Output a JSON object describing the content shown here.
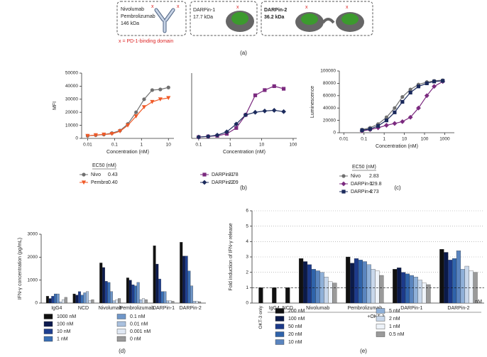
{
  "diagram": {
    "antibodies": {
      "names": [
        "Nivolumab",
        "Pembrolizumab"
      ],
      "size": "146 kDa"
    },
    "darpin1": {
      "name": "DARPin-1",
      "size": "17.7 kDa"
    },
    "darpin2": {
      "name": "DARPin-2",
      "size": "36.2 kDa"
    },
    "mark": "x",
    "legend": "x = PD-1-binding domain"
  },
  "panel_labels": [
    "(a)",
    "(b)",
    "(c)",
    "(d)",
    "(e)"
  ],
  "chart_data": [
    {
      "type": "line",
      "y_label": "MFI",
      "x_label": "Concentration (nM)",
      "log_x": true,
      "xlim": [
        0.006,
        16
      ],
      "xticks": [
        0.01,
        0.1,
        1,
        10
      ],
      "ylim": [
        0,
        50000
      ],
      "yticks": [
        0,
        10000,
        20000,
        30000,
        40000,
        50000
      ],
      "legend_title": "EC50 (nM)",
      "x": [
        0.01,
        0.02,
        0.04,
        0.08,
        0.16,
        0.31,
        0.63,
        1.25,
        2.5,
        5,
        10
      ],
      "series": [
        {
          "name": "Nivo",
          "ec50": "0.43",
          "color": "#707070",
          "marker": "circle",
          "values": [
            2000,
            2500,
            3000,
            4000,
            6000,
            11000,
            20000,
            30000,
            37000,
            37500,
            39000
          ]
        },
        {
          "name": "Pembro",
          "ec50": "0.40",
          "color": "#f05a28",
          "marker": "triangle",
          "values": [
            2000,
            2500,
            3000,
            3500,
            5500,
            10000,
            17000,
            24000,
            28000,
            30000,
            31000
          ]
        }
      ]
    },
    {
      "type": "line",
      "x_label": "Concentration (nM)",
      "log_x": true,
      "xlim": [
        0.06,
        130
      ],
      "xticks": [
        0.1,
        1,
        10,
        100
      ],
      "ylim": [
        0,
        50000
      ],
      "x": [
        0.1,
        0.2,
        0.39,
        0.78,
        1.56,
        3.1,
        6.25,
        12.5,
        25,
        50
      ],
      "series": [
        {
          "name": "DARPin-1",
          "ec50": "3.78",
          "color": "#7b2a7f",
          "marker": "square",
          "values": [
            1000,
            1500,
            2000,
            3500,
            8000,
            18000,
            33000,
            37000,
            40000,
            38000
          ]
        },
        {
          "name": "DARPin-2",
          "ec50": "2.09",
          "color": "#1b2a5c",
          "marker": "diamond",
          "values": [
            1000,
            1500,
            2500,
            5000,
            11000,
            18000,
            20000,
            21000,
            21500,
            20500
          ]
        }
      ]
    },
    {
      "type": "line",
      "y_label": "Luminescence",
      "x_label": "Concentration (nM)",
      "log_x": true,
      "xlim": [
        0.006,
        3000
      ],
      "xticks": [
        0.01,
        0.1,
        1,
        10,
        100,
        1000
      ],
      "ylim": [
        0,
        100000
      ],
      "yticks": [
        0,
        20000,
        40000,
        60000,
        80000,
        100000
      ],
      "legend_title": "EC50 (nM)",
      "x": [
        0.08,
        0.2,
        0.5,
        1.3,
        3.3,
        8,
        20,
        50,
        130,
        300,
        800
      ],
      "series": [
        {
          "name": "Nivo",
          "ec50": "2.83",
          "color": "#707070",
          "marker": "circle",
          "values": [
            5000,
            8000,
            14000,
            25000,
            40000,
            58000,
            70000,
            78000,
            82000,
            84000,
            85000
          ]
        },
        {
          "name": "DARPin-1",
          "ec50": "129.8",
          "color": "#7b2a7f",
          "marker": "diamond",
          "values": [
            3000,
            5000,
            8000,
            12000,
            15000,
            18000,
            25000,
            40000,
            60000,
            75000,
            83000
          ]
        },
        {
          "name": "DARPin-2",
          "ec50": "4.73",
          "color": "#1b2a5c",
          "marker": "square",
          "values": [
            4000,
            6000,
            11000,
            20000,
            33000,
            50000,
            65000,
            75000,
            80000,
            83000,
            84000
          ]
        }
      ]
    },
    {
      "type": "bar",
      "y_label": "IFN-γ concentration (pg/mL)",
      "ylim": [
        0,
        3000
      ],
      "yticks": [
        0,
        1000,
        2000,
        3000
      ],
      "categories": [
        "IgG4",
        "NCD",
        "Nivolumab",
        "Pembrolizumab",
        "DARPin-1",
        "DARPin-2"
      ],
      "series": [
        {
          "name": "1000 nM",
          "color": "#111111",
          "values": [
            300,
            400,
            1750,
            1100,
            2500,
            2650
          ]
        },
        {
          "name": "100 nM",
          "color": "#0d1b4f",
          "values": [
            200,
            350,
            1550,
            1000,
            1700,
            2050
          ]
        },
        {
          "name": "10 nM",
          "color": "#1f3f8f",
          "values": [
            300,
            500,
            950,
            800,
            1050,
            2050
          ]
        },
        {
          "name": "1 nM",
          "color": "#3a6fb5",
          "values": [
            400,
            350,
            900,
            750,
            500,
            1400
          ]
        },
        {
          "name": "0.1 nM",
          "color": "#6f96c8",
          "values": [
            400,
            450,
            500,
            900,
            500,
            750
          ]
        },
        {
          "name": "0.01 nM",
          "color": "#a9c0de",
          "values": [
            50,
            500,
            100,
            150,
            100,
            80
          ]
        },
        {
          "name": "0.001 nM",
          "color": "#e0e8f3",
          "values": [
            150,
            100,
            150,
            200,
            100,
            80
          ]
        },
        {
          "name": "0 nM",
          "color": "#9a9a9a",
          "values": [
            250,
            150,
            200,
            150,
            80,
            60
          ]
        }
      ]
    },
    {
      "type": "bar",
      "y_label": "Fold induction of IFN-γ release",
      "ylim": [
        0,
        6
      ],
      "yticks": [
        0,
        1,
        2,
        3,
        4,
        5,
        6
      ],
      "grid": true,
      "hline": 1,
      "annotations": [
        "+OKT-3",
        "nM"
      ],
      "categories": [
        "OKT-3 only",
        "IgG4",
        "NCD",
        "Nivolumab",
        "Pembrolizumab",
        "DARPin-1",
        "DARPin-2"
      ],
      "series": [
        {
          "name": "200 nM",
          "color": "#111111",
          "values": [
            1,
            1,
            1,
            2.9,
            3.0,
            2.2,
            3.5
          ]
        },
        {
          "name": "100 nM",
          "color": "#0b1a4a",
          "values": [
            null,
            null,
            null,
            2.7,
            2.6,
            2.3,
            3.3
          ]
        },
        {
          "name": "50 nM",
          "color": "#1c3a8a",
          "values": [
            null,
            null,
            null,
            2.5,
            2.9,
            2.0,
            2.8
          ]
        },
        {
          "name": "20 nM",
          "color": "#2f63aa",
          "values": [
            null,
            null,
            null,
            2.2,
            2.8,
            1.9,
            2.9
          ]
        },
        {
          "name": "10 nM",
          "color": "#5a85bf",
          "values": [
            null,
            null,
            null,
            2.1,
            2.7,
            1.8,
            3.4
          ]
        },
        {
          "name": "5 nM",
          "color": "#8fb0d8",
          "values": [
            null,
            null,
            null,
            2.0,
            2.5,
            1.7,
            2.2
          ]
        },
        {
          "name": "2 nM",
          "color": "#c8d7ea",
          "values": [
            null,
            null,
            null,
            1.7,
            2.2,
            1.5,
            2.4
          ]
        },
        {
          "name": "1 nM",
          "color": "#eef3f9",
          "values": [
            null,
            null,
            null,
            1.4,
            2.1,
            1.3,
            2.1
          ]
        },
        {
          "name": "0.5 nM",
          "color": "#9a9a9a",
          "values": [
            null,
            null,
            null,
            1.3,
            1.8,
            1.2,
            2.0
          ]
        }
      ]
    }
  ]
}
